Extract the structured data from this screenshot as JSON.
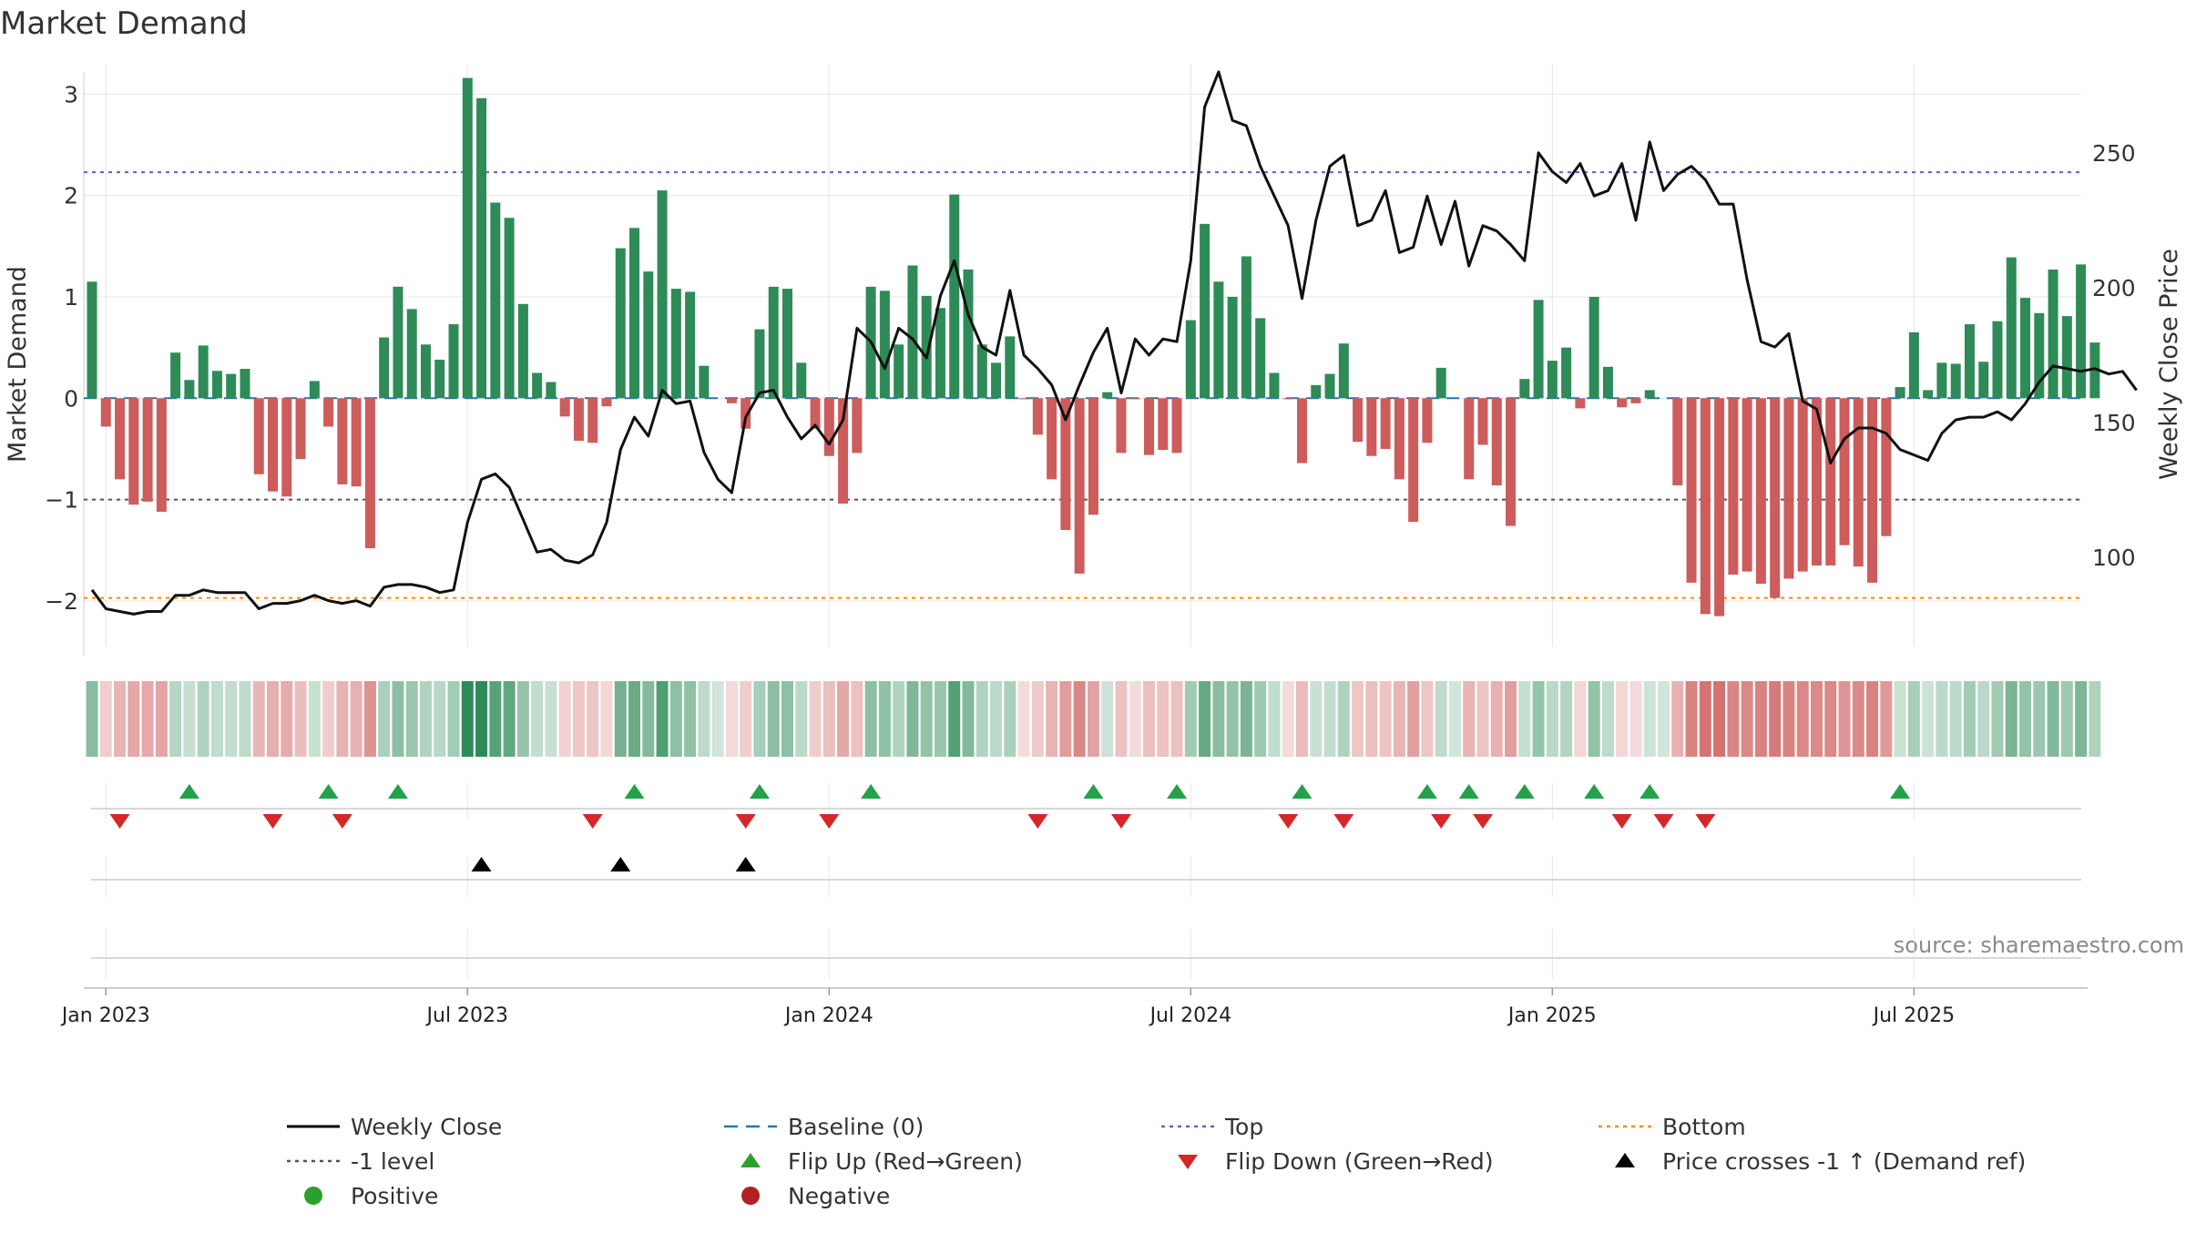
{
  "chart_data": {
    "type": "bar",
    "title": "Market Demand",
    "ylabel_left": "Market Demand",
    "ylabel_right": "Weekly Close Price",
    "source": "source: sharemaestro.com",
    "ylim_left": [
      -2.45,
      3.3
    ],
    "ylim_right": [
      67,
      283
    ],
    "yticks_left": [
      3,
      2,
      1,
      0,
      -1,
      -2
    ],
    "yticks_left_labels": [
      "3",
      "2",
      "1",
      "0",
      "−1",
      "−2"
    ],
    "yticks_right": [
      250,
      200,
      150,
      100
    ],
    "xticks": [
      {
        "label": "Jan 2023",
        "week": 1
      },
      {
        "label": "Jul 2023",
        "week": 27
      },
      {
        "label": "Jan 2024",
        "week": 53
      },
      {
        "label": "Jul 2024",
        "week": 79
      },
      {
        "label": "Jan 2025",
        "week": 105
      },
      {
        "label": "Jul 2025",
        "week": 131
      }
    ],
    "levels": {
      "top": 2.23,
      "minus_one": -1,
      "bottom": -1.97,
      "baseline": 0
    },
    "demand": [
      1.15,
      -0.28,
      -0.8,
      -1.05,
      -1.02,
      -1.12,
      0.45,
      0.18,
      0.52,
      0.27,
      0.24,
      0.29,
      -0.75,
      -0.92,
      -0.97,
      -0.6,
      0.17,
      -0.28,
      -0.85,
      -0.87,
      -1.48,
      0.6,
      1.1,
      0.88,
      0.53,
      0.38,
      0.73,
      3.16,
      2.96,
      1.93,
      1.78,
      0.93,
      0.25,
      0.16,
      -0.18,
      -0.42,
      -0.44,
      -0.08,
      1.48,
      1.68,
      1.25,
      2.05,
      1.08,
      1.05,
      0.32,
      0.0,
      -0.05,
      -0.3,
      0.68,
      1.1,
      1.08,
      0.35,
      -0.3,
      -0.57,
      -1.04,
      -0.54,
      1.1,
      1.06,
      0.53,
      1.31,
      1.01,
      0.89,
      2.01,
      1.27,
      0.53,
      0.35,
      0.61,
      -0.01,
      -0.36,
      -0.8,
      -1.3,
      -1.73,
      -1.15,
      0.06,
      -0.54,
      -0.01,
      -0.56,
      -0.51,
      -0.54,
      0.77,
      1.72,
      1.15,
      1.0,
      1.4,
      0.79,
      0.25,
      -0.01,
      -0.64,
      0.13,
      0.24,
      0.54,
      -0.43,
      -0.57,
      -0.5,
      -0.8,
      -1.22,
      -0.44,
      0.3,
      0.0,
      -0.8,
      -0.46,
      -0.86,
      -1.26,
      0.19,
      0.97,
      0.37,
      0.5,
      -0.1,
      1.0,
      0.31,
      -0.09,
      -0.05,
      0.08,
      0.0,
      -0.86,
      -1.82,
      -2.13,
      -2.15,
      -1.74,
      -1.71,
      -1.83,
      -1.97,
      -1.78,
      -1.71,
      -1.65,
      -1.65,
      -1.45,
      -1.66,
      -1.82,
      -1.36,
      0.11,
      0.65,
      0.08,
      0.35,
      0.34,
      0.73,
      0.36,
      0.76,
      1.39,
      0.99,
      0.84,
      1.27,
      0.81,
      1.32,
      0.55
    ],
    "price": [
      88,
      81,
      80,
      79,
      80,
      80,
      86,
      86,
      88,
      87,
      87,
      87,
      81,
      83,
      83,
      84,
      86,
      84,
      83,
      84,
      82,
      89,
      90,
      90,
      89,
      87,
      88,
      113,
      129,
      131,
      126,
      114,
      102,
      103,
      99,
      98,
      101,
      113,
      140,
      152,
      145,
      162,
      157,
      158,
      139,
      129,
      124,
      152,
      161,
      162,
      152,
      144,
      149,
      142,
      151,
      185,
      180,
      170,
      185,
      181,
      174,
      197,
      210,
      190,
      178,
      175,
      199,
      175,
      170,
      164,
      151,
      164,
      176,
      185,
      161,
      181,
      175,
      181,
      180,
      210,
      267,
      280,
      262,
      260,
      245,
      234,
      223,
      196,
      225,
      245,
      249,
      223,
      225,
      236,
      213,
      215,
      234,
      216,
      232,
      208,
      223,
      221,
      216,
      210,
      250,
      243,
      239,
      246,
      234,
      236,
      246,
      225,
      254,
      236,
      242,
      245,
      240,
      231,
      231,
      203,
      180,
      178,
      183,
      158,
      155,
      135,
      144,
      148,
      148,
      146,
      140,
      138,
      136,
      146,
      151,
      152,
      152,
      154,
      151,
      157,
      165,
      171,
      170,
      169,
      170,
      168,
      169,
      162
    ],
    "flip_up_weeks": [
      7,
      17,
      22,
      39,
      48,
      56,
      72,
      78,
      87,
      96,
      99,
      103,
      108,
      112,
      130
    ],
    "flip_down_weeks": [
      2,
      13,
      18,
      36,
      47,
      53,
      68,
      74,
      86,
      90,
      97,
      100,
      110,
      113,
      116
    ],
    "price_cross_weeks": [
      28,
      38,
      47
    ],
    "legend": [
      {
        "label": "Weekly Close",
        "kind": "line",
        "color": "#000000"
      },
      {
        "label": "Baseline (0)",
        "kind": "dash",
        "color": "#1f77b4"
      },
      {
        "label": "Top",
        "kind": "dot",
        "color": "#6a5acd"
      },
      {
        "label": "Bottom",
        "kind": "dot",
        "color": "#ff8c00"
      },
      {
        "label": "-1 level",
        "kind": "dot",
        "color": "#555555"
      },
      {
        "label": "Flip Up (Red→Green)",
        "kind": "tri-up",
        "color": "#2ca02c"
      },
      {
        "label": "Flip Down (Green→Red)",
        "kind": "tri-down",
        "color": "#d62728"
      },
      {
        "label": "Price crosses -1 ↑ (Demand ref)",
        "kind": "tri-up",
        "color": "#000000"
      },
      {
        "label": "Positive",
        "kind": "circle",
        "color": "#2ca02c"
      },
      {
        "label": "Negative",
        "kind": "circle",
        "color": "#b22222"
      }
    ],
    "colors": {
      "positive": "#2e8b57",
      "negative": "#cd5c5c",
      "price": "#111111",
      "grid": "#e6e6e6"
    }
  }
}
